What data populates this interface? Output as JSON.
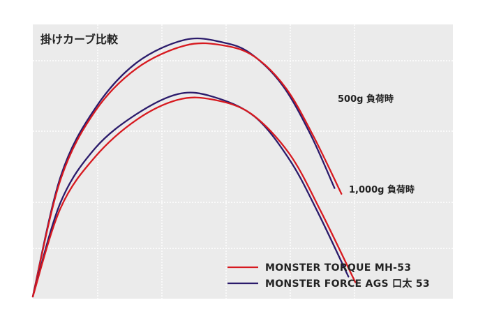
{
  "chart_data": {
    "type": "line",
    "title": "掛けカーブ比較",
    "xlabel": "",
    "ylabel": "",
    "grid": true,
    "legend_position": "bottom-right",
    "curve_labels": [
      {
        "text": "500g 負荷時",
        "series": "500g"
      },
      {
        "text": "1,000g 負荷時",
        "series": "1000g"
      }
    ],
    "legend": [
      {
        "label": "MONSTER TORQUE MH-53",
        "color": "#d7191f"
      },
      {
        "label": "MONSTER FORCE AGS 口太 53",
        "color": "#2b1b6b"
      }
    ],
    "series": [
      {
        "name": "MONSTER FORCE AGS 口太 53",
        "load": "500g",
        "color": "#2b1b6b",
        "points": [
          [
            0,
            0
          ],
          [
            0.08,
            0.42
          ],
          [
            0.18,
            0.66
          ],
          [
            0.3,
            0.82
          ],
          [
            0.44,
            0.9
          ],
          [
            0.55,
            0.89
          ],
          [
            0.63,
            0.85
          ],
          [
            0.72,
            0.74
          ],
          [
            0.8,
            0.57
          ],
          [
            0.87,
            0.38
          ]
        ]
      },
      {
        "name": "MONSTER TORQUE MH-53",
        "load": "500g",
        "color": "#d7191f",
        "points": [
          [
            0,
            0
          ],
          [
            0.08,
            0.41
          ],
          [
            0.18,
            0.65
          ],
          [
            0.3,
            0.8
          ],
          [
            0.44,
            0.88
          ],
          [
            0.55,
            0.88
          ],
          [
            0.64,
            0.84
          ],
          [
            0.73,
            0.73
          ],
          [
            0.81,
            0.56
          ],
          [
            0.89,
            0.36
          ]
        ]
      },
      {
        "name": "MONSTER FORCE AGS 口太 53",
        "load": "1000g",
        "color": "#2b1b6b",
        "points": [
          [
            0,
            0
          ],
          [
            0.08,
            0.33
          ],
          [
            0.18,
            0.52
          ],
          [
            0.3,
            0.64
          ],
          [
            0.42,
            0.71
          ],
          [
            0.52,
            0.7
          ],
          [
            0.64,
            0.63
          ],
          [
            0.74,
            0.48
          ],
          [
            0.82,
            0.3
          ],
          [
            0.91,
            0.07
          ]
        ]
      },
      {
        "name": "MONSTER TORQUE MH-53",
        "load": "1000g",
        "color": "#d7191f",
        "points": [
          [
            0,
            0
          ],
          [
            0.08,
            0.31
          ],
          [
            0.18,
            0.49
          ],
          [
            0.3,
            0.62
          ],
          [
            0.42,
            0.69
          ],
          [
            0.52,
            0.69
          ],
          [
            0.63,
            0.64
          ],
          [
            0.74,
            0.5
          ],
          [
            0.83,
            0.3
          ],
          [
            0.93,
            0.05
          ]
        ]
      }
    ]
  }
}
